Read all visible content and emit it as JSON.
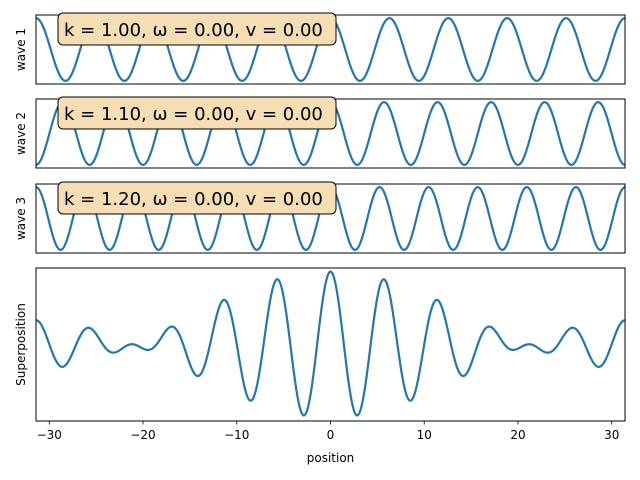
{
  "chart_data": {
    "type": "line",
    "x_range": [
      -31.4159,
      31.4159
    ],
    "xlabel": "position",
    "x_ticks": [
      -30,
      -20,
      -10,
      0,
      10,
      20,
      30
    ],
    "x_tick_labels": [
      "−30",
      "−20",
      "−10",
      "0",
      "10",
      "20",
      "30"
    ],
    "line_color": "#1f77b4",
    "annotation_bg": "#f5deb3",
    "panels": [
      {
        "ylabel": "wave 1",
        "k": 1.0,
        "omega": 0.0,
        "v": 0.0,
        "annotation": "k = 1.00, ω = 0.00, v = 0.00",
        "ylim": [
          -1.1,
          1.1
        ]
      },
      {
        "ylabel": "wave 2",
        "k": 1.1,
        "omega": 0.0,
        "v": 0.0,
        "annotation": "k = 1.10, ω = 0.00, v = 0.00",
        "ylim": [
          -1.1,
          1.1
        ]
      },
      {
        "ylabel": "wave 3",
        "k": 1.2,
        "omega": 0.0,
        "v": 0.0,
        "annotation": "k = 1.20, ω = 0.00, v = 0.00",
        "ylim": [
          -1.1,
          1.1
        ]
      },
      {
        "ylabel": "Superposition",
        "components_k": [
          1.0,
          1.1,
          1.2
        ],
        "ylim": [
          -3.15,
          3.15
        ]
      }
    ]
  }
}
